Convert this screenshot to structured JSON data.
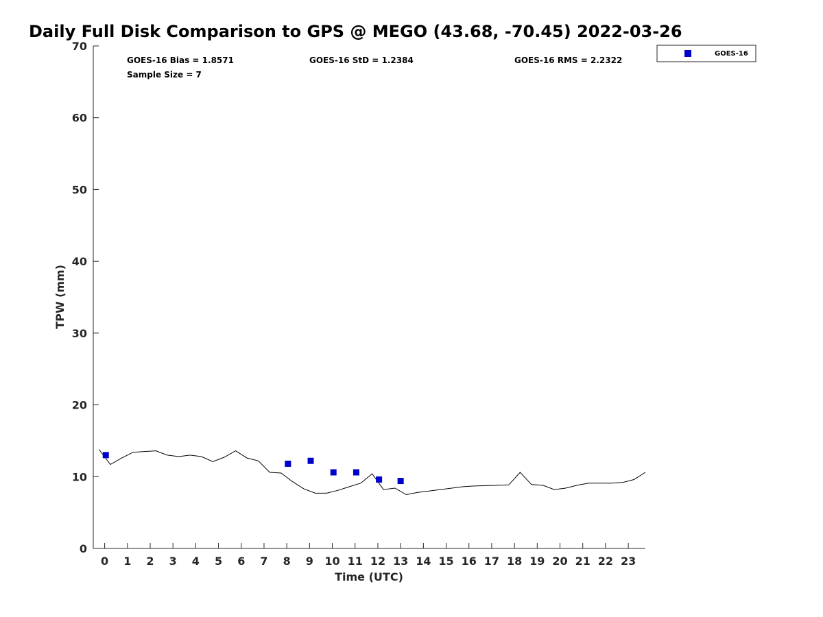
{
  "chart_data": {
    "type": "scatter",
    "title": "Daily Full Disk Comparison to GPS @ MEGO (43.68, -70.45) 2022-03-26",
    "xlabel": "Time (UTC)",
    "ylabel": "TPW (mm)",
    "xlim": [
      -0.5,
      23.75
    ],
    "ylim": [
      0,
      70
    ],
    "xticks": [
      0,
      1,
      2,
      3,
      4,
      5,
      6,
      7,
      8,
      9,
      10,
      11,
      12,
      13,
      14,
      15,
      16,
      17,
      18,
      19,
      20,
      21,
      22,
      23
    ],
    "yticks": [
      0,
      10,
      20,
      30,
      40,
      50,
      60,
      70
    ],
    "grid": false,
    "legend_position": "outside-top-right",
    "stats": {
      "bias": "GOES-16 Bias = 1.8571",
      "std": "GOES-16 StD = 1.2384",
      "rms": "GOES-16 RMS = 2.2322",
      "sample": "Sample Size = 7"
    },
    "series": [
      {
        "name": "GOES-16",
        "kind": "marker",
        "color": "#0000cc",
        "marker": "square",
        "x": [
          0.05,
          8.05,
          9.05,
          10.05,
          11.05,
          12.05,
          13.0
        ],
        "y": [
          13.0,
          11.8,
          12.2,
          10.6,
          10.6,
          9.6,
          9.4
        ]
      },
      {
        "kind": "line",
        "color": "#000000",
        "x": [
          -0.25,
          0.25,
          0.75,
          1.25,
          1.75,
          2.25,
          2.75,
          3.25,
          3.75,
          4.25,
          4.75,
          5.25,
          5.75,
          6.25,
          6.75,
          7.25,
          7.75,
          8.25,
          8.75,
          9.25,
          9.75,
          10.25,
          10.75,
          11.25,
          11.75,
          12.25,
          12.75,
          13.25,
          13.75,
          14.25,
          14.75,
          15.25,
          15.75,
          16.25,
          16.75,
          17.25,
          17.75,
          18.25,
          18.75,
          19.25,
          19.75,
          20.25,
          20.75,
          21.25,
          21.75,
          22.25,
          22.75,
          23.25,
          23.75
        ],
        "y": [
          13.8,
          11.7,
          12.6,
          13.4,
          13.5,
          13.6,
          13.0,
          12.8,
          13.0,
          12.8,
          12.1,
          12.7,
          13.6,
          12.6,
          12.2,
          10.6,
          10.5,
          9.3,
          8.3,
          7.7,
          7.7,
          8.1,
          8.6,
          9.1,
          10.4,
          8.2,
          8.4,
          7.5,
          7.8,
          8.0,
          8.2,
          8.4,
          8.6,
          8.7,
          8.75,
          8.8,
          8.85,
          10.6,
          8.9,
          8.8,
          8.2,
          8.4,
          8.8,
          9.1,
          9.1,
          9.1,
          9.2,
          9.6,
          10.6
        ]
      }
    ]
  }
}
